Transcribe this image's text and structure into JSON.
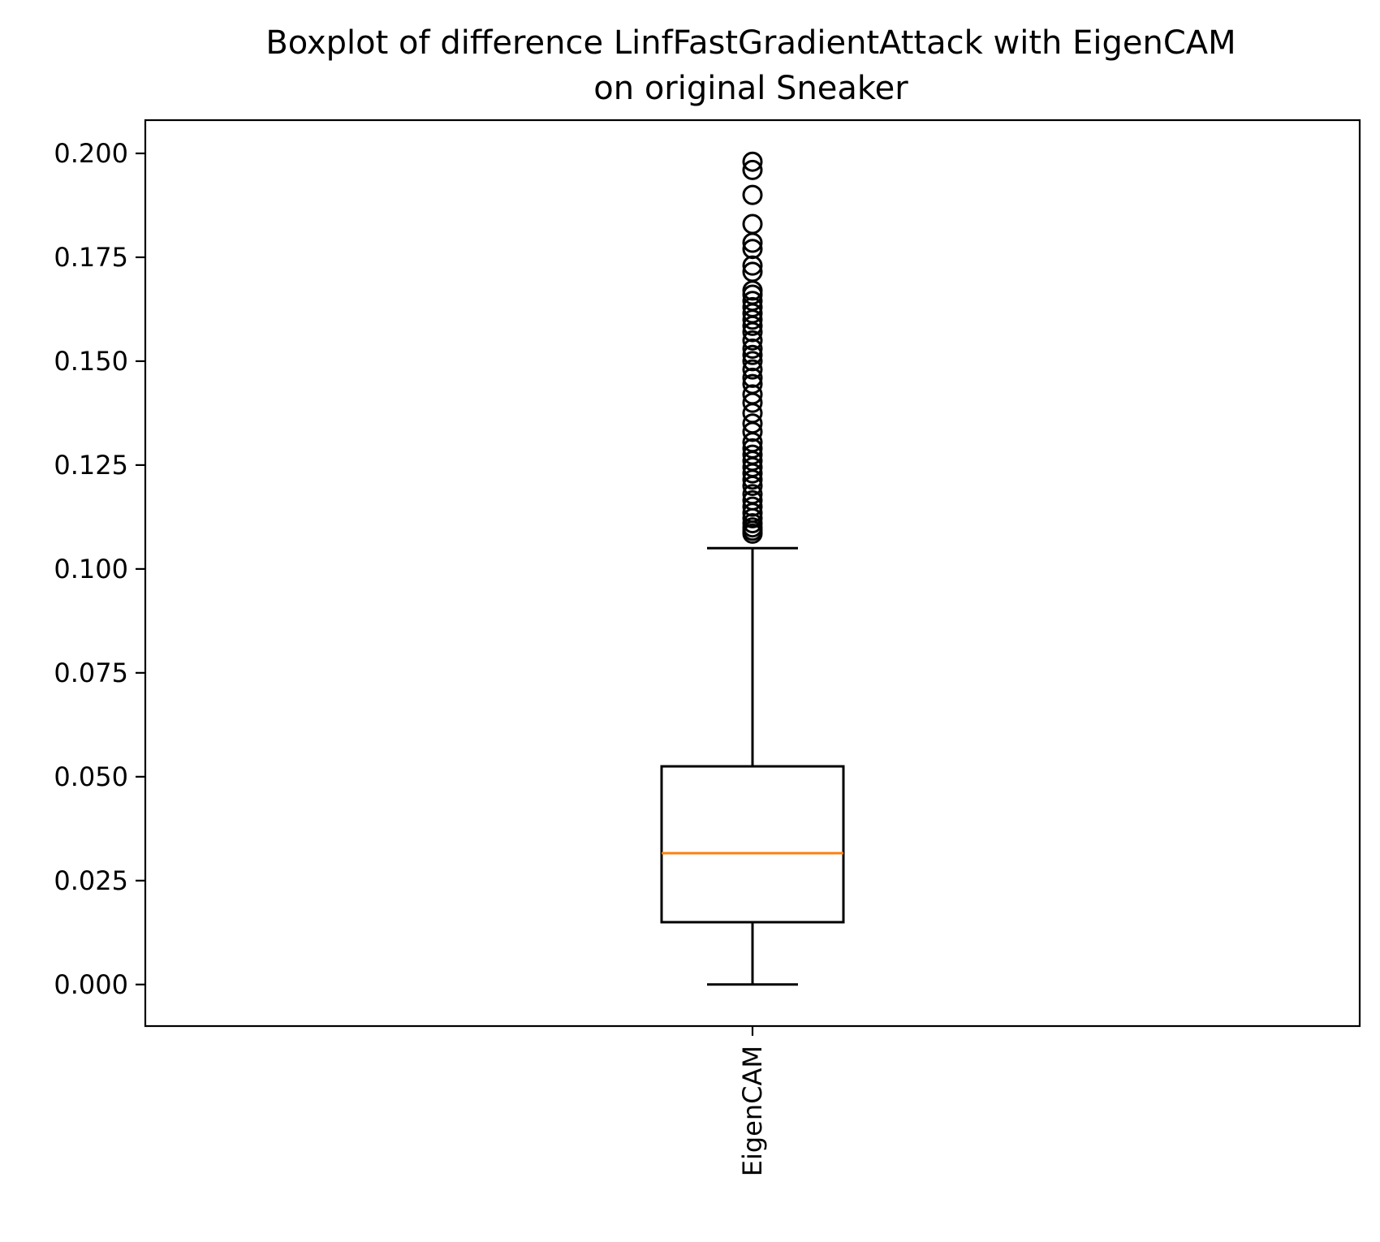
{
  "chart_data": {
    "type": "box",
    "title": "Boxplot of difference LinfFastGradientAttack with EigenCAM\non original Sneaker",
    "title_lines": [
      "Boxplot of difference LinfFastGradientAttack with EigenCAM",
      "on original Sneaker"
    ],
    "xlabel": "",
    "ylabel": "",
    "categories": [
      "EigenCAM"
    ],
    "x_tick_rotation": "vertical",
    "ylim": [
      -0.01,
      0.208
    ],
    "y_ticks": [
      0.0,
      0.025,
      0.05,
      0.075,
      0.1,
      0.125,
      0.15,
      0.175,
      0.2
    ],
    "y_tick_labels": [
      "0.000",
      "0.025",
      "0.050",
      "0.075",
      "0.100",
      "0.125",
      "0.150",
      "0.175",
      "0.200"
    ],
    "grid": false,
    "legend": "none",
    "boxes": [
      {
        "category": "EigenCAM",
        "whisker_low": 0.0,
        "q1": 0.015,
        "median": 0.0316,
        "q3": 0.0525,
        "whisker_high": 0.105,
        "outliers": [
          0.1085,
          0.1092,
          0.11,
          0.111,
          0.1122,
          0.1135,
          0.115,
          0.1165,
          0.118,
          0.12,
          0.1215,
          0.123,
          0.1245,
          0.126,
          0.1275,
          0.129,
          0.1305,
          0.133,
          0.135,
          0.1375,
          0.14,
          0.142,
          0.1445,
          0.146,
          0.148,
          0.15,
          0.1515,
          0.153,
          0.155,
          0.157,
          0.1585,
          0.16,
          0.1615,
          0.163,
          0.1645,
          0.166,
          0.167,
          0.1715,
          0.173,
          0.177,
          0.1785,
          0.183,
          0.19,
          0.196,
          0.198
        ]
      }
    ],
    "colors": {
      "box": "#000000",
      "median": "#ff7f0e",
      "outlier_edge": "#000000"
    }
  }
}
